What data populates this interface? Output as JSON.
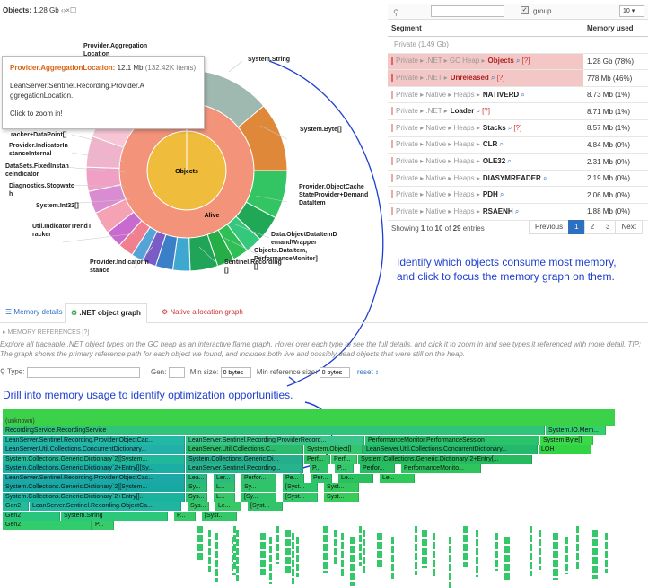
{
  "header": {
    "title": "Objects:",
    "size": "1.28 Gb",
    "controls": "‹›×☐"
  },
  "tooltip": {
    "name": "Provider.AggregationLocation:",
    "value": "12.1 Mb",
    "items": "(132.42K items)",
    "full": "LeanServer.Sentinel.Recording.Provider.AggregationLocation.",
    "hint": "Click to zoom in!"
  },
  "sunburst": {
    "center": "Objects",
    "inner": "Alive",
    "labels": {
      "agg": "Provider.Aggregation\nLocation",
      "string": "System.String",
      "byte": "System.Byte[]",
      "cache": "Provider.ObjectCache\nStateProvider+Demand\nDataItem",
      "dataitem": "Data.ObjectDataItemD\nemandWrapper",
      "perf": "Objects.DataItem,\nPerformanceMonitor]\n[]",
      "sentinel": "Sentinel.Recording\n[]",
      "pinst": "Provider.IndicatorIn\nstance",
      "trend": "Util.IndicatorTrendT\nracker",
      "int32": "System.Int32[]",
      "stopwatch": "Diagnostics.Stopwatc\nh",
      "fixed": "DataSets.FixedInstan\nceIndicator",
      "indint": "Provider.IndicatorIn\nstanceInternal",
      "tracker": "racker+DataPoint[]"
    }
  },
  "table": {
    "search_placeholder": "",
    "group_label": "group",
    "page_size": "10",
    "columns": [
      "Segment",
      "Memory used"
    ],
    "rows": [
      {
        "crumb": "Private (1.49 Gb)",
        "name": "",
        "link": "",
        "mem": "",
        "highlight": false
      },
      {
        "crumb": "Private ▸ .NET ▸ GC Heap ▸",
        "name": "Objects",
        "link": "[?]",
        "mem": "1.28 Gb (78%)",
        "highlight": true
      },
      {
        "crumb": "Private ▸ .NET ▸",
        "name": "Unreleased",
        "link": "[?]",
        "mem": "778 Mb (46%)",
        "highlight": true
      },
      {
        "crumb": "Private ▸ Native ▸ Heaps ▸",
        "name": "NATIVERD",
        "link": "",
        "mem": "8.73 Mb (1%)",
        "highlight": false
      },
      {
        "crumb": "Private ▸ .NET ▸",
        "name": "Loader",
        "link": "[?]",
        "mem": "8.71 Mb (1%)",
        "highlight": false
      },
      {
        "crumb": "Private ▸ Native ▸ Heaps ▸",
        "name": "Stacks",
        "link": "[?]",
        "mem": "8.57 Mb (1%)",
        "highlight": false
      },
      {
        "crumb": "Private ▸ Native ▸ Heaps ▸",
        "name": "CLR",
        "link": "",
        "mem": "4.84 Mb (0%)",
        "highlight": false
      },
      {
        "crumb": "Private ▸ Native ▸ Heaps ▸",
        "name": "OLE32",
        "link": "",
        "mem": "2.31 Mb (0%)",
        "highlight": false
      },
      {
        "crumb": "Private ▸ Native ▸ Heaps ▸",
        "name": "DIASYMREADER",
        "link": "",
        "mem": "2.19 Mb (0%)",
        "highlight": false
      },
      {
        "crumb": "Private ▸ Native ▸ Heaps ▸",
        "name": "PDH",
        "link": "",
        "mem": "2.06 Mb (0%)",
        "highlight": false
      },
      {
        "crumb": "Private ▸ Native ▸ Heaps ▸",
        "name": "RSAENH",
        "link": "",
        "mem": "1.88 Mb (0%)",
        "highlight": false
      }
    ],
    "showing": {
      "prefix": "Showing",
      "from": "1",
      "to_word": "to",
      "to": "10",
      "of_word": "of",
      "total": "29",
      "suffix": "entries"
    },
    "pager": {
      "prev": "Previous",
      "pages": [
        "1",
        "2",
        "3"
      ],
      "next": "Next"
    }
  },
  "callout1": "Identify which objects consume most memory,\nand click to focus the memory graph on them.",
  "callout2": "Drill into memory usage to identify optimization opportunities.",
  "tabs": [
    {
      "label": "Memory details",
      "icon": "list-icon"
    },
    {
      "label": ".NET object graph",
      "icon": "graph-icon"
    },
    {
      "label": "Native allocation graph",
      "icon": "graph-icon"
    }
  ],
  "refs": {
    "heading": "▸ MEMORY REFERENCES [?]",
    "desc": "Explore all traceable .NET object types on the GC heap as an interactive flame graph. Hover over each type to see the full details, and click it to zoom in and see types it referenced with more detail. TIP: The graph shows the primary reference path for each object we found, and includes both live and possibly dead objects that were still on the heap."
  },
  "filters": {
    "type_label": "Type:",
    "type_placeholder": "",
    "gen_label": "Gen:",
    "minsize_label": "Min size:",
    "minsize_value": "0 bytes",
    "minref_label": "Min reference size:",
    "minref_value": "0 bytes",
    "reset": "reset ↕"
  },
  "flame": {
    "unknown": "(unknown)",
    "rows": [
      [
        {
          "t": "RecordingService.RecordingService",
          "w": 605,
          "c": "#2fc47a"
        },
        {
          "t": "System.IO.Mem...",
          "w": 68,
          "c": "#34d06c"
        }
      ],
      [
        {
          "t": "LeanServer.Sentinel.Recording.Provider.ObjectCac...",
          "w": 204,
          "c": "#22b8a6"
        },
        {
          "t": "LeanServer.Sentinel.Recording.ProviderRecord...",
          "w": 200,
          "c": "#3ac48a"
        },
        {
          "t": "PerformanceMonitor.PerformanceSession",
          "w": 195,
          "c": "#2bc26c"
        },
        {
          "t": "System.Byte[]",
          "w": 60,
          "c": "#3cd84c"
        }
      ],
      [
        {
          "t": "LeanServer.Util.Collections.ConcurrentDictionary...",
          "w": 204,
          "c": "#22b0a8"
        },
        {
          "t": "LeanServer.Util.Collections.C...",
          "w": 132,
          "c": "#2cbb6a"
        },
        {
          "t": "System.Object[]",
          "w": 66,
          "c": "#36c56e"
        },
        {
          "t": "LeanServer.Util.Collections.ConcurrentDictionary...",
          "w": 195,
          "c": "#24b86c"
        },
        {
          "t": "LOH",
          "w": 60,
          "c": "#33d444"
        }
      ],
      [
        {
          "t": "System.Collections.Generic.Dictionary`2[[System...",
          "w": 204,
          "c": "#1fb89a"
        },
        {
          "t": "System.Collections.Generic.Di...",
          "w": 132,
          "c": "#24ae8c"
        },
        {
          "t": "Perf...",
          "w": 30,
          "c": "#31c063"
        },
        {
          "t": "Perf...",
          "w": 30,
          "c": "#39c96f"
        },
        {
          "t": "System.Collections.Generic.Dictionary`2+Entry[...",
          "w": 195,
          "c": "#27bb60"
        }
      ],
      [
        {
          "t": "System.Collections.Generic.Dictionary`2+Entry[][Sy...",
          "w": 204,
          "c": "#1aaea4"
        },
        {
          "t": "LeanServer.Sentinel.Recording...",
          "w": 132,
          "c": "#26b38e"
        },
        {
          "t": "P...",
          "w": 22,
          "c": "#2fc26a"
        },
        {
          "t": "P...",
          "w": 22,
          "c": "#36c76e"
        },
        {
          "t": "Perfor...",
          "w": 40,
          "c": "#28bd62"
        },
        {
          "t": "PerformanceMonito...",
          "w": 90,
          "c": "#2ec45e"
        }
      ],
      [
        {
          "t": "LeanServer.Sentinel.Recording.Provider.ObjectCac...",
          "w": 204,
          "c": "#1ca8a6"
        },
        {
          "t": "Lea...",
          "w": 25,
          "c": "#29b783"
        },
        {
          "t": "Ler...",
          "w": 25,
          "c": "#2bbc7d"
        },
        {
          "t": "Perfor...",
          "w": 40,
          "c": "#33c170"
        },
        {
          "t": "Pe...",
          "w": 25,
          "c": "#2dc06a"
        },
        {
          "t": "Per...",
          "w": 25,
          "c": "#2fc36c"
        },
        {
          "t": "Le...",
          "w": 40,
          "c": "#2ac060"
        },
        {
          "t": "Le...",
          "w": 40,
          "c": "#2fc95a"
        }
      ],
      [
        {
          "t": "System.Collections.Generic.Dictionary`2[[System...",
          "w": 204,
          "c": "#18a8a2"
        },
        {
          "t": "Sy...",
          "w": 25,
          "c": "#2bbc76"
        },
        {
          "t": "L...",
          "w": 25,
          "c": "#30c06e"
        },
        {
          "t": "Sy...",
          "w": 40,
          "c": "#2fc46a"
        },
        {
          "t": "[Syst...",
          "w": 40,
          "c": "#30c46a"
        },
        {
          "t": "Syst...",
          "w": 40,
          "c": "#34c85e"
        }
      ],
      [
        {
          "t": "System.Collections.Generic.Dictionary`2+Entry[]...",
          "w": 204,
          "c": "#1ab39e"
        },
        {
          "t": "Sys...",
          "w": 25,
          "c": "#31c26e"
        },
        {
          "t": "L...",
          "w": 25,
          "c": "#36c76a"
        },
        {
          "t": "[Sy...",
          "w": 40,
          "c": "#2ec46a"
        },
        {
          "t": "[Syst...",
          "w": 40,
          "c": "#33c869"
        },
        {
          "t": "Syst...",
          "w": 40,
          "c": "#38cc5a"
        }
      ],
      [
        {
          "t": "Gen2",
          "w": 30,
          "c": "#22be9a"
        },
        {
          "t": "LeanServer.Sentinel.Recording.ObjectCa...",
          "w": 170,
          "c": "#20b5a0"
        },
        {
          "t": "Sys...",
          "w": 25,
          "c": "#34c86a"
        },
        {
          "t": "Le...",
          "w": 30,
          "c": "#37c967"
        },
        {
          "t": "[Syst...",
          "w": 40,
          "c": "#33c46a"
        }
      ],
      [
        {
          "t": "Gen2",
          "w": 65,
          "c": "#29c57c"
        },
        {
          "t": "System.String",
          "w": 120,
          "c": "#2bc87a"
        },
        {
          "t": "P...",
          "w": 25,
          "c": "#37c969"
        },
        {
          "t": "[Syst...",
          "w": 40,
          "c": "#34c86a"
        }
      ],
      [
        {
          "t": "Gen2",
          "w": 100,
          "c": "#31cc6c"
        },
        {
          "t": "P...",
          "w": 25,
          "c": "#38cb6a"
        }
      ]
    ]
  }
}
